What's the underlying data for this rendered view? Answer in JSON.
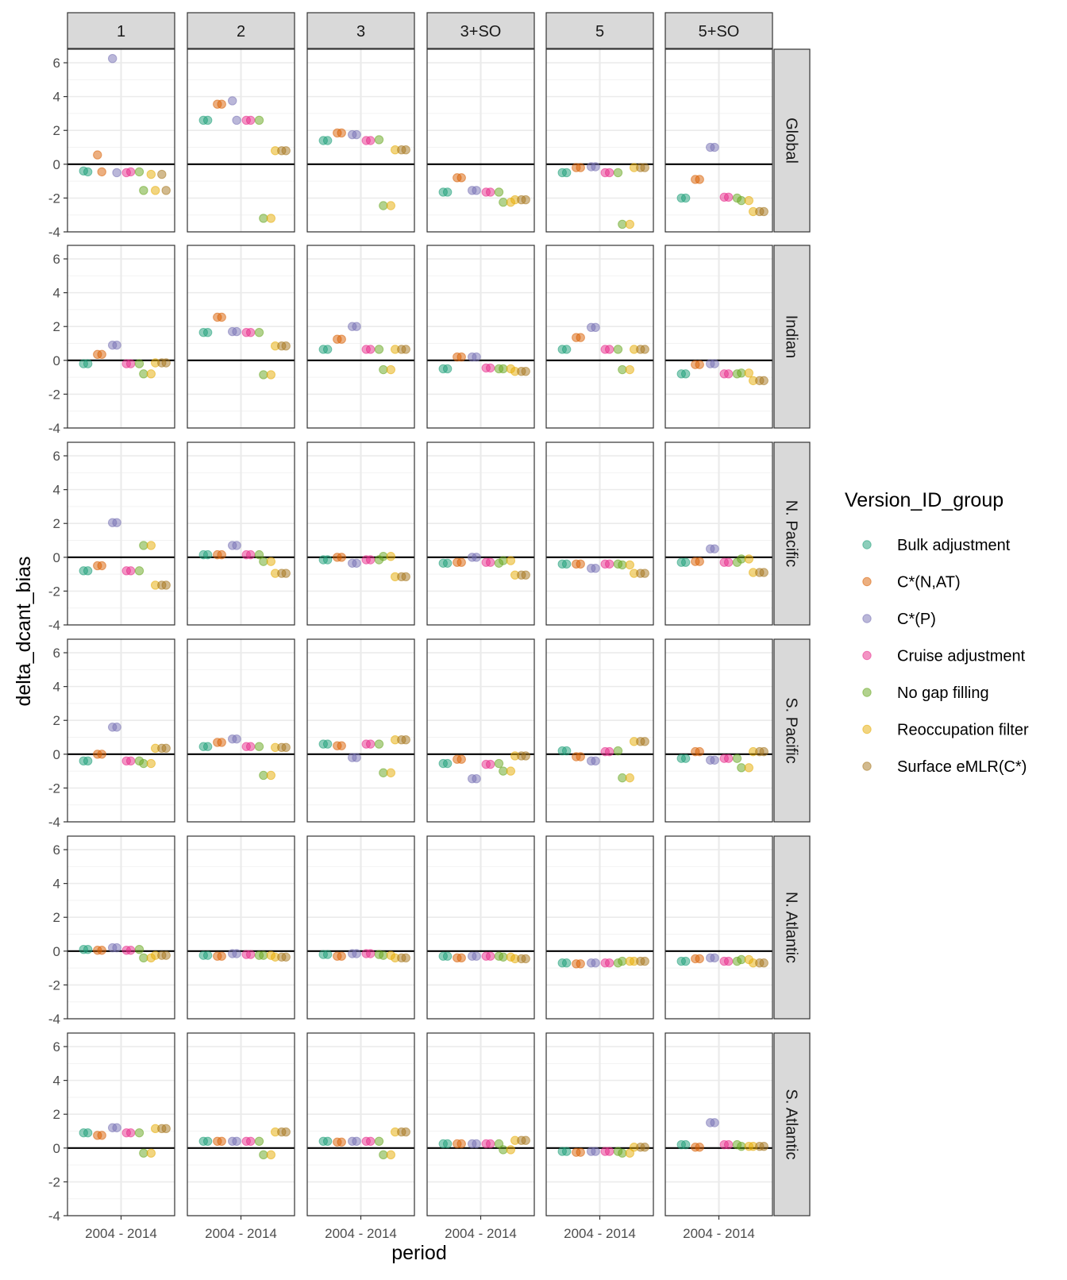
{
  "chart_data": {
    "type": "scatter",
    "xlabel": "period",
    "ylabel": "delta_dcant_bias",
    "x_categories": [
      "2004 - 2014"
    ],
    "ylim": [
      -4,
      6.8
    ],
    "yticks": [
      -4,
      -2,
      0,
      2,
      4,
      6
    ],
    "hline": 0,
    "grid": true,
    "col_facets": [
      "1",
      "2",
      "3",
      "3+SO",
      "5",
      "5+SO"
    ],
    "row_facets": [
      "Global",
      "Indian",
      "N. Pacific",
      "S. Pacific",
      "N. Atlantic",
      "S. Atlantic"
    ],
    "legend": {
      "title": "Version_ID_group",
      "position": "right",
      "entries": [
        {
          "name": "Bulk adjustment",
          "color": "#1b9e77"
        },
        {
          "name": "C*(N,AT)",
          "color": "#d95f02"
        },
        {
          "name": "C*(P)",
          "color": "#7570b3"
        },
        {
          "name": "Cruise adjustment",
          "color": "#e7298a"
        },
        {
          "name": "No gap filling",
          "color": "#66a61e"
        },
        {
          "name": "Reoccupation filter",
          "color": "#e6ab02"
        },
        {
          "name": "Surface eMLR(C*)",
          "color": "#a6761d"
        }
      ]
    },
    "points": [
      {
        "row": 0,
        "col": 0,
        "values": [
          [
            -0.4,
            -0.45
          ],
          [
            0.55,
            -0.45
          ],
          [
            6.25,
            -0.5
          ],
          [
            -0.5,
            -0.45
          ],
          [
            -0.45,
            -1.55
          ],
          [
            -0.6,
            -1.55
          ],
          [
            -0.6,
            -1.55
          ]
        ]
      },
      {
        "row": 0,
        "col": 1,
        "values": [
          [
            2.6,
            2.6
          ],
          [
            3.55,
            3.55
          ],
          [
            3.75,
            2.6
          ],
          [
            2.6,
            2.6
          ],
          [
            2.6,
            -3.2
          ],
          [
            -3.2,
            0.8
          ],
          [
            0.8,
            0.8
          ]
        ]
      },
      {
        "row": 0,
        "col": 2,
        "values": [
          [
            1.4,
            1.4
          ],
          [
            1.85,
            1.85
          ],
          [
            1.75,
            1.75
          ],
          [
            1.4,
            1.4
          ],
          [
            1.45,
            -2.45
          ],
          [
            -2.45,
            0.85
          ],
          [
            0.85,
            0.85
          ]
        ]
      },
      {
        "row": 0,
        "col": 3,
        "values": [
          [
            -1.65,
            -1.65
          ],
          [
            -0.8,
            -0.8
          ],
          [
            -1.55,
            -1.55
          ],
          [
            -1.65,
            -1.65
          ],
          [
            -1.65,
            -2.25
          ],
          [
            -2.25,
            -2.1
          ],
          [
            -2.1,
            -2.1
          ]
        ]
      },
      {
        "row": 0,
        "col": 4,
        "values": [
          [
            -0.5,
            -0.5
          ],
          [
            -0.2,
            -0.2
          ],
          [
            -0.15,
            -0.15
          ],
          [
            -0.5,
            -0.5
          ],
          [
            -0.5,
            -3.55
          ],
          [
            -3.55,
            -0.2
          ],
          [
            -0.2,
            -0.2
          ]
        ]
      },
      {
        "row": 0,
        "col": 5,
        "values": [
          [
            -2.0,
            -2.0
          ],
          [
            -0.9,
            -0.9
          ],
          [
            1.0,
            1.0
          ],
          [
            -1.95,
            -1.95
          ],
          [
            -2.0,
            -2.15
          ],
          [
            -2.15,
            -2.8
          ],
          [
            -2.8,
            -2.8
          ]
        ]
      },
      {
        "row": 1,
        "col": 0,
        "values": [
          [
            -0.2,
            -0.2
          ],
          [
            0.35,
            0.35
          ],
          [
            0.9,
            0.9
          ],
          [
            -0.2,
            -0.2
          ],
          [
            -0.2,
            -0.8
          ],
          [
            -0.8,
            -0.15
          ],
          [
            -0.15,
            -0.15
          ]
        ]
      },
      {
        "row": 1,
        "col": 1,
        "values": [
          [
            1.65,
            1.65
          ],
          [
            2.55,
            2.55
          ],
          [
            1.7,
            1.7
          ],
          [
            1.65,
            1.65
          ],
          [
            1.65,
            -0.85
          ],
          [
            -0.85,
            0.85
          ],
          [
            0.85,
            0.85
          ]
        ]
      },
      {
        "row": 1,
        "col": 2,
        "values": [
          [
            0.65,
            0.65
          ],
          [
            1.25,
            1.25
          ],
          [
            2.0,
            2.0
          ],
          [
            0.65,
            0.65
          ],
          [
            0.65,
            -0.55
          ],
          [
            -0.55,
            0.65
          ],
          [
            0.65,
            0.65
          ]
        ]
      },
      {
        "row": 1,
        "col": 3,
        "values": [
          [
            -0.5,
            -0.5
          ],
          [
            0.2,
            0.2
          ],
          [
            0.2,
            0.2
          ],
          [
            -0.45,
            -0.45
          ],
          [
            -0.5,
            -0.5
          ],
          [
            -0.5,
            -0.65
          ],
          [
            -0.65,
            -0.65
          ]
        ]
      },
      {
        "row": 1,
        "col": 4,
        "values": [
          [
            0.65,
            0.65
          ],
          [
            1.35,
            1.35
          ],
          [
            1.95,
            1.95
          ],
          [
            0.65,
            0.65
          ],
          [
            0.65,
            -0.55
          ],
          [
            -0.55,
            0.65
          ],
          [
            0.65,
            0.65
          ]
        ]
      },
      {
        "row": 1,
        "col": 5,
        "values": [
          [
            -0.8,
            -0.8
          ],
          [
            -0.25,
            -0.25
          ],
          [
            -0.2,
            -0.2
          ],
          [
            -0.8,
            -0.8
          ],
          [
            -0.8,
            -0.75
          ],
          [
            -0.75,
            -1.2
          ],
          [
            -1.2,
            -1.2
          ]
        ]
      },
      {
        "row": 2,
        "col": 0,
        "values": [
          [
            -0.8,
            -0.8
          ],
          [
            -0.5,
            -0.5
          ],
          [
            2.05,
            2.05
          ],
          [
            -0.8,
            -0.8
          ],
          [
            -0.8,
            0.7
          ],
          [
            0.7,
            -1.65
          ],
          [
            -1.65,
            -1.65
          ]
        ]
      },
      {
        "row": 2,
        "col": 1,
        "values": [
          [
            0.15,
            0.15
          ],
          [
            0.15,
            0.15
          ],
          [
            0.7,
            0.7
          ],
          [
            0.15,
            0.15
          ],
          [
            0.15,
            -0.25
          ],
          [
            -0.25,
            -0.95
          ],
          [
            -0.95,
            -0.95
          ]
        ]
      },
      {
        "row": 2,
        "col": 2,
        "values": [
          [
            -0.15,
            -0.15
          ],
          [
            0.0,
            0.0
          ],
          [
            -0.35,
            -0.35
          ],
          [
            -0.15,
            -0.15
          ],
          [
            -0.15,
            0.05
          ],
          [
            0.05,
            -1.15
          ],
          [
            -1.15,
            -1.15
          ]
        ]
      },
      {
        "row": 2,
        "col": 3,
        "values": [
          [
            -0.35,
            -0.35
          ],
          [
            -0.3,
            -0.3
          ],
          [
            0.0,
            0.0
          ],
          [
            -0.3,
            -0.3
          ],
          [
            -0.35,
            -0.2
          ],
          [
            -0.2,
            -1.05
          ],
          [
            -1.05,
            -1.05
          ]
        ]
      },
      {
        "row": 2,
        "col": 4,
        "values": [
          [
            -0.4,
            -0.4
          ],
          [
            -0.4,
            -0.4
          ],
          [
            -0.65,
            -0.65
          ],
          [
            -0.4,
            -0.4
          ],
          [
            -0.4,
            -0.45
          ],
          [
            -0.45,
            -0.95
          ],
          [
            -0.95,
            -0.95
          ]
        ]
      },
      {
        "row": 2,
        "col": 5,
        "values": [
          [
            -0.3,
            -0.3
          ],
          [
            -0.25,
            -0.25
          ],
          [
            0.5,
            0.5
          ],
          [
            -0.3,
            -0.3
          ],
          [
            -0.3,
            -0.1
          ],
          [
            -0.1,
            -0.9
          ],
          [
            -0.9,
            -0.9
          ]
        ]
      },
      {
        "row": 3,
        "col": 0,
        "values": [
          [
            -0.4,
            -0.4
          ],
          [
            0.0,
            0.0
          ],
          [
            1.6,
            1.6
          ],
          [
            -0.4,
            -0.4
          ],
          [
            -0.4,
            -0.55
          ],
          [
            -0.55,
            0.35
          ],
          [
            0.35,
            0.35
          ]
        ]
      },
      {
        "row": 3,
        "col": 1,
        "values": [
          [
            0.45,
            0.45
          ],
          [
            0.7,
            0.7
          ],
          [
            0.9,
            0.9
          ],
          [
            0.45,
            0.45
          ],
          [
            0.45,
            -1.25
          ],
          [
            -1.25,
            0.4
          ],
          [
            0.4,
            0.4
          ]
        ]
      },
      {
        "row": 3,
        "col": 2,
        "values": [
          [
            0.6,
            0.6
          ],
          [
            0.5,
            0.5
          ],
          [
            -0.2,
            -0.2
          ],
          [
            0.6,
            0.6
          ],
          [
            0.6,
            -1.1
          ],
          [
            -1.1,
            0.85
          ],
          [
            0.85,
            0.85
          ]
        ]
      },
      {
        "row": 3,
        "col": 3,
        "values": [
          [
            -0.55,
            -0.55
          ],
          [
            -0.3,
            -0.3
          ],
          [
            -1.45,
            -1.45
          ],
          [
            -0.6,
            -0.6
          ],
          [
            -0.55,
            -1.0
          ],
          [
            -1.0,
            -0.1
          ],
          [
            -0.1,
            -0.1
          ]
        ]
      },
      {
        "row": 3,
        "col": 4,
        "values": [
          [
            0.2,
            0.2
          ],
          [
            -0.15,
            -0.15
          ],
          [
            -0.4,
            -0.4
          ],
          [
            0.15,
            0.15
          ],
          [
            0.2,
            -1.4
          ],
          [
            -1.4,
            0.75
          ],
          [
            0.75,
            0.75
          ]
        ]
      },
      {
        "row": 3,
        "col": 5,
        "values": [
          [
            -0.25,
            -0.25
          ],
          [
            0.15,
            0.15
          ],
          [
            -0.35,
            -0.35
          ],
          [
            -0.25,
            -0.25
          ],
          [
            -0.25,
            -0.8
          ],
          [
            -0.8,
            0.15
          ],
          [
            0.15,
            0.15
          ]
        ]
      },
      {
        "row": 4,
        "col": 0,
        "values": [
          [
            0.1,
            0.1
          ],
          [
            0.05,
            0.05
          ],
          [
            0.2,
            0.2
          ],
          [
            0.05,
            0.05
          ],
          [
            0.1,
            -0.4
          ],
          [
            -0.4,
            -0.25
          ],
          [
            -0.25,
            -0.25
          ]
        ]
      },
      {
        "row": 4,
        "col": 1,
        "values": [
          [
            -0.25,
            -0.25
          ],
          [
            -0.3,
            -0.3
          ],
          [
            -0.15,
            -0.15
          ],
          [
            -0.2,
            -0.2
          ],
          [
            -0.25,
            -0.25
          ],
          [
            -0.25,
            -0.35
          ],
          [
            -0.35,
            -0.35
          ]
        ]
      },
      {
        "row": 4,
        "col": 2,
        "values": [
          [
            -0.2,
            -0.2
          ],
          [
            -0.3,
            -0.3
          ],
          [
            -0.15,
            -0.15
          ],
          [
            -0.15,
            -0.15
          ],
          [
            -0.2,
            -0.25
          ],
          [
            -0.25,
            -0.4
          ],
          [
            -0.4,
            -0.4
          ]
        ]
      },
      {
        "row": 4,
        "col": 3,
        "values": [
          [
            -0.3,
            -0.3
          ],
          [
            -0.4,
            -0.4
          ],
          [
            -0.3,
            -0.3
          ],
          [
            -0.3,
            -0.3
          ],
          [
            -0.3,
            -0.35
          ],
          [
            -0.35,
            -0.45
          ],
          [
            -0.45,
            -0.45
          ]
        ]
      },
      {
        "row": 4,
        "col": 4,
        "values": [
          [
            -0.7,
            -0.7
          ],
          [
            -0.75,
            -0.75
          ],
          [
            -0.7,
            -0.7
          ],
          [
            -0.7,
            -0.7
          ],
          [
            -0.7,
            -0.6
          ],
          [
            -0.6,
            -0.6
          ],
          [
            -0.6,
            -0.6
          ]
        ]
      },
      {
        "row": 4,
        "col": 5,
        "values": [
          [
            -0.6,
            -0.6
          ],
          [
            -0.45,
            -0.45
          ],
          [
            -0.4,
            -0.4
          ],
          [
            -0.6,
            -0.6
          ],
          [
            -0.6,
            -0.5
          ],
          [
            -0.5,
            -0.7
          ],
          [
            -0.7,
            -0.7
          ]
        ]
      },
      {
        "row": 5,
        "col": 0,
        "values": [
          [
            0.9,
            0.9
          ],
          [
            0.75,
            0.75
          ],
          [
            1.2,
            1.2
          ],
          [
            0.9,
            0.9
          ],
          [
            0.9,
            -0.3
          ],
          [
            -0.3,
            1.15
          ],
          [
            1.15,
            1.15
          ]
        ]
      },
      {
        "row": 5,
        "col": 1,
        "values": [
          [
            0.4,
            0.4
          ],
          [
            0.4,
            0.4
          ],
          [
            0.4,
            0.4
          ],
          [
            0.4,
            0.4
          ],
          [
            0.4,
            -0.4
          ],
          [
            -0.4,
            0.95
          ],
          [
            0.95,
            0.95
          ]
        ]
      },
      {
        "row": 5,
        "col": 2,
        "values": [
          [
            0.4,
            0.4
          ],
          [
            0.35,
            0.35
          ],
          [
            0.4,
            0.4
          ],
          [
            0.4,
            0.4
          ],
          [
            0.4,
            -0.4
          ],
          [
            -0.4,
            0.95
          ],
          [
            0.95,
            0.95
          ]
        ]
      },
      {
        "row": 5,
        "col": 3,
        "values": [
          [
            0.25,
            0.25
          ],
          [
            0.25,
            0.25
          ],
          [
            0.25,
            0.25
          ],
          [
            0.25,
            0.25
          ],
          [
            0.25,
            -0.1
          ],
          [
            -0.1,
            0.45
          ],
          [
            0.45,
            0.45
          ]
        ]
      },
      {
        "row": 5,
        "col": 4,
        "values": [
          [
            -0.2,
            -0.2
          ],
          [
            -0.25,
            -0.25
          ],
          [
            -0.2,
            -0.2
          ],
          [
            -0.2,
            -0.2
          ],
          [
            -0.2,
            -0.3
          ],
          [
            -0.3,
            0.05
          ],
          [
            0.05,
            0.05
          ]
        ]
      },
      {
        "row": 5,
        "col": 5,
        "values": [
          [
            0.2,
            0.2
          ],
          [
            0.05,
            0.05
          ],
          [
            1.5,
            1.5
          ],
          [
            0.2,
            0.2
          ],
          [
            0.2,
            0.1
          ],
          [
            0.1,
            0.1
          ],
          [
            0.1,
            0.1
          ]
        ]
      }
    ]
  }
}
